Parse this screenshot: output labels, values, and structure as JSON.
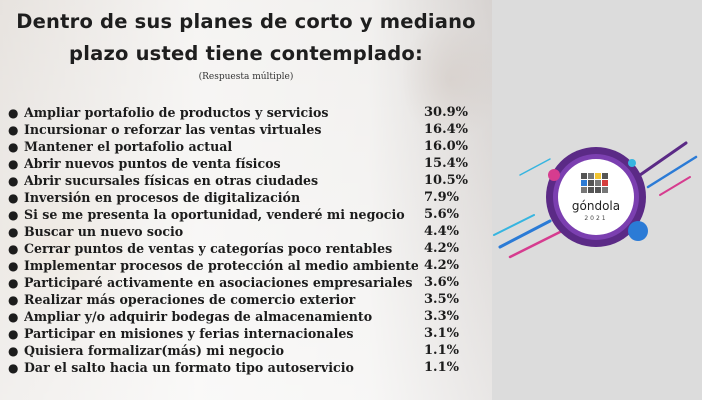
{
  "title_line1": "Dentro de sus planes de corto y mediano",
  "title_line2": "plazo usted tiene contemplado:",
  "subtitle": "(Respuesta múltiple)",
  "items": [
    {
      "label": "Ampliar portafolio de productos y servicios",
      "value": "30.9%"
    },
    {
      "label": "Incursionar o reforzar las ventas virtuales",
      "value": "16.4%"
    },
    {
      "label": "Mantener el portafolio actual",
      "value": "16.0%"
    },
    {
      "label": "Abrir nuevos puntos de venta físicos",
      "value": "15.4%"
    },
    {
      "label": "Abrir sucursales físicas en otras ciudades",
      "value": "10.5%"
    },
    {
      "label": "Inversión en procesos de digitalización",
      "value": "7.9%"
    },
    {
      "label": "Si se me presenta la oportunidad, venderé mi negocio",
      "value": "5.6%"
    },
    {
      "label": "Buscar un nuevo socio",
      "value": "4.4%"
    },
    {
      "label": "Cerrar puntos de ventas y categorías poco rentables",
      "value": "4.2%"
    },
    {
      "label": "Implementar procesos de protección al medio ambiente",
      "value": "4.2%"
    },
    {
      "label": "Participaré activamente en asociaciones empresariales",
      "value": "3.6%"
    },
    {
      "label": "Realizar más operaciones de comercio exterior",
      "value": "3.5%"
    },
    {
      "label": "Ampliar y/o adquirir bodegas de almacenamiento",
      "value": "3.3%"
    },
    {
      "label": "Participar en misiones y ferias internacionales",
      "value": "3.1%"
    },
    {
      "label": "Quisiera formalizar(más) mi negocio",
      "value": "1.1%"
    },
    {
      "label": "Dar el salto hacia un formato tipo autoservicio",
      "value": "1.1%"
    }
  ],
  "bullet_char": "●",
  "logo": {
    "wordmark": "góndola",
    "year": "2021",
    "colors": {
      "ring": "#5b2a86",
      "accent_blue": "#2b7bd6",
      "accent_pink": "#d63c8f",
      "accent_cyan": "#36b5e0"
    }
  }
}
